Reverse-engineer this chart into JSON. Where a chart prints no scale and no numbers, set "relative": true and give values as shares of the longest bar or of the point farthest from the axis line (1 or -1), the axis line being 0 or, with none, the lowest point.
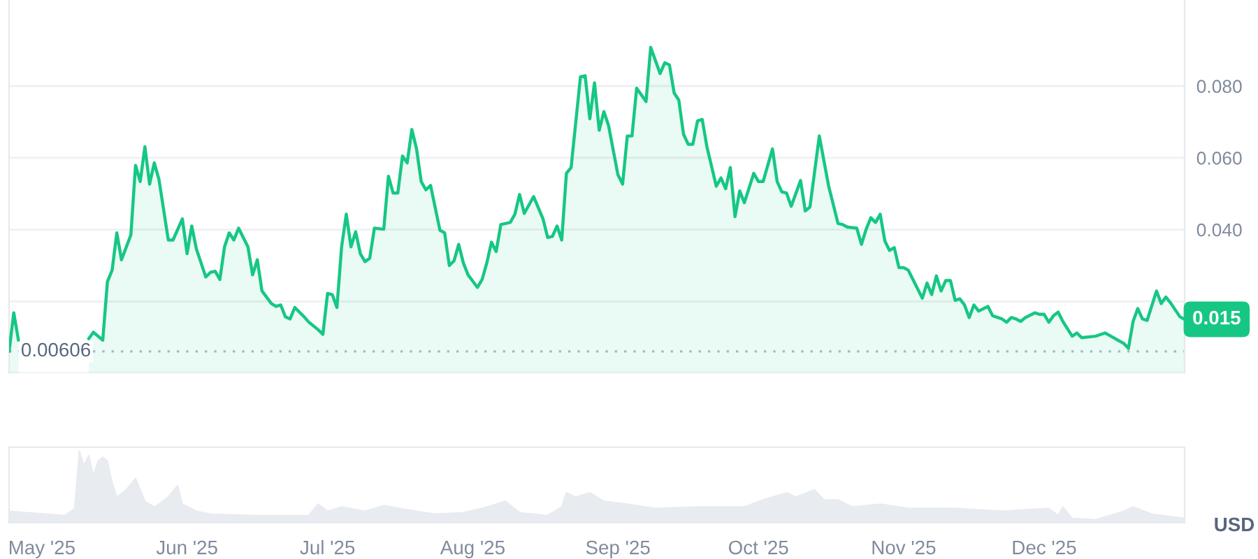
{
  "chart_data": [
    {
      "type": "area",
      "xlim": [
        "2025-04-24",
        "2025-12-31"
      ],
      "ylim": [
        0,
        0.104
      ],
      "yticks": [
        {
          "value": 0,
          "label": null
        },
        {
          "value": 0.02,
          "label": null
        },
        {
          "value": 0.04,
          "label": "0.040"
        },
        {
          "value": 0.06,
          "label": "0.060"
        },
        {
          "value": 0.08,
          "label": "0.080"
        }
      ],
      "grid": "y",
      "tick_labels": "y",
      "ref_lines": [
        {
          "axis": "y",
          "value": 0.00606,
          "label": "0.00606",
          "line_style": "dotted",
          "color": "#b4b9c3"
        }
      ],
      "annotations": [
        {
          "text": "0.015",
          "x": "2025-12-31",
          "y": 0.015
        }
      ],
      "x": [
        "2025-04-24",
        "2025-04-25",
        "2025-04-26",
        "2025-05-03",
        "2025-05-11",
        "2025-05-12",
        "2025-05-14",
        "2025-05-15",
        "2025-05-16",
        "2025-05-17",
        "2025-05-18",
        "2025-05-20",
        "2025-05-21",
        "2025-05-22",
        "2025-05-23",
        "2025-05-24",
        "2025-05-25",
        "2025-05-26",
        "2025-05-28",
        "2025-05-29",
        "2025-05-31",
        "2025-06-01",
        "2025-06-02",
        "2025-06-03",
        "2025-06-05",
        "2025-06-06",
        "2025-06-07",
        "2025-06-08",
        "2025-06-09",
        "2025-06-10",
        "2025-06-11",
        "2025-06-12",
        "2025-06-14",
        "2025-06-15",
        "2025-06-16",
        "2025-06-17",
        "2025-06-19",
        "2025-06-20",
        "2025-06-21",
        "2025-06-22",
        "2025-06-23",
        "2025-06-24",
        "2025-06-26",
        "2025-06-27",
        "2025-06-29",
        "2025-06-30",
        "2025-07-01",
        "2025-07-02",
        "2025-07-03",
        "2025-07-04",
        "2025-07-05",
        "2025-07-06",
        "2025-07-07",
        "2025-07-08",
        "2025-07-09",
        "2025-07-10",
        "2025-07-11",
        "2025-07-13",
        "2025-07-14",
        "2025-07-15",
        "2025-07-16",
        "2025-07-17",
        "2025-07-18",
        "2025-07-19",
        "2025-07-20",
        "2025-07-21",
        "2025-07-22",
        "2025-07-23",
        "2025-07-25",
        "2025-07-26",
        "2025-07-27",
        "2025-07-28",
        "2025-07-29",
        "2025-07-30",
        "2025-07-31",
        "2025-08-02",
        "2025-08-03",
        "2025-08-04",
        "2025-08-05",
        "2025-08-06",
        "2025-08-07",
        "2025-08-09",
        "2025-08-10",
        "2025-08-11",
        "2025-08-12",
        "2025-08-14",
        "2025-08-16",
        "2025-08-17",
        "2025-08-18",
        "2025-08-19",
        "2025-08-20",
        "2025-08-21",
        "2025-08-22",
        "2025-08-24",
        "2025-08-25",
        "2025-08-26",
        "2025-08-27",
        "2025-08-28",
        "2025-08-29",
        "2025-08-30",
        "2025-09-01",
        "2025-09-02",
        "2025-09-03",
        "2025-09-04",
        "2025-09-05",
        "2025-09-07",
        "2025-09-08",
        "2025-09-10",
        "2025-09-11",
        "2025-09-12",
        "2025-09-13",
        "2025-09-14",
        "2025-09-15",
        "2025-09-16",
        "2025-09-17",
        "2025-09-18",
        "2025-09-19",
        "2025-09-20",
        "2025-09-22",
        "2025-09-23",
        "2025-09-24",
        "2025-09-25",
        "2025-09-26",
        "2025-09-27",
        "2025-09-28",
        "2025-09-30",
        "2025-10-01",
        "2025-10-02",
        "2025-10-04",
        "2025-10-05",
        "2025-10-06",
        "2025-10-07",
        "2025-10-08",
        "2025-10-10",
        "2025-10-11",
        "2025-10-12",
        "2025-10-14",
        "2025-10-16",
        "2025-10-18",
        "2025-10-19",
        "2025-10-20",
        "2025-10-22",
        "2025-10-23",
        "2025-10-24",
        "2025-10-25",
        "2025-10-26",
        "2025-10-27",
        "2025-10-28",
        "2025-10-29",
        "2025-10-30",
        "2025-10-31",
        "2025-11-01",
        "2025-11-02",
        "2025-11-05",
        "2025-11-06",
        "2025-11-07",
        "2025-11-08",
        "2025-11-09",
        "2025-11-10",
        "2025-11-11",
        "2025-11-12",
        "2025-11-13",
        "2025-11-14",
        "2025-11-15",
        "2025-11-16",
        "2025-11-17",
        "2025-11-19",
        "2025-11-20",
        "2025-11-22",
        "2025-11-23",
        "2025-11-24",
        "2025-11-25",
        "2025-11-26",
        "2025-11-27",
        "2025-11-29",
        "2025-11-30",
        "2025-12-01",
        "2025-12-02",
        "2025-12-03",
        "2025-12-04",
        "2025-12-05",
        "2025-12-07",
        "2025-12-08",
        "2025-12-09",
        "2025-12-12",
        "2025-12-14",
        "2025-12-15",
        "2025-12-17",
        "2025-12-18",
        "2025-12-19",
        "2025-12-20",
        "2025-12-21",
        "2025-12-22",
        "2025-12-23",
        "2025-12-25",
        "2025-12-26",
        "2025-12-27",
        "2025-12-28",
        "2025-12-30",
        "2025-12-31"
      ],
      "series": [
        {
          "color": "#16c784",
          "values": [
            0.00606,
            0.0168,
            0.0092,
            null,
            0.0096,
            0.0114,
            0.0092,
            0.0255,
            0.0287,
            0.0391,
            0.0316,
            0.0385,
            0.0579,
            0.0534,
            0.0631,
            0.0527,
            0.0586,
            0.054,
            0.0371,
            0.0371,
            0.043,
            0.0333,
            0.041,
            0.0346,
            0.0268,
            0.0281,
            0.0284,
            0.0261,
            0.0352,
            0.0391,
            0.0371,
            0.0404,
            0.0352,
            0.0274,
            0.0316,
            0.0229,
            0.0194,
            0.0186,
            0.019,
            0.0157,
            0.0151,
            0.0183,
            0.0157,
            0.0142,
            0.0121,
            0.0108,
            0.0222,
            0.0219,
            0.0183,
            0.0352,
            0.0443,
            0.0352,
            0.0394,
            0.0333,
            0.0311,
            0.032,
            0.0404,
            0.0401,
            0.0549,
            0.0502,
            0.0502,
            0.0605,
            0.0586,
            0.0679,
            0.0625,
            0.0534,
            0.0511,
            0.0523,
            0.0398,
            0.0391,
            0.03,
            0.0313,
            0.0359,
            0.0307,
            0.0274,
            0.0239,
            0.0261,
            0.0307,
            0.0365,
            0.0339,
            0.0414,
            0.042,
            0.0443,
            0.0498,
            0.0445,
            0.0492,
            0.043,
            0.0378,
            0.0381,
            0.041,
            0.0371,
            0.0557,
            0.0573,
            0.0826,
            0.0829,
            0.0709,
            0.0809,
            0.0677,
            0.0729,
            0.069,
            0.0553,
            0.0527,
            0.0661,
            0.0661,
            0.0794,
            0.0757,
            0.0908,
            0.0835,
            0.0865,
            0.0859,
            0.0781,
            0.0761,
            0.0666,
            0.0638,
            0.0638,
            0.0703,
            0.0707,
            0.0631,
            0.0521,
            0.0544,
            0.0514,
            0.0573,
            0.0436,
            0.0508,
            0.0475,
            0.0557,
            0.0534,
            0.0534,
            0.0625,
            0.0534,
            0.0505,
            0.0502,
            0.0465,
            0.0537,
            0.0452,
            0.0463,
            0.0661,
            0.0521,
            0.0417,
            0.0414,
            0.0407,
            0.0404,
            0.0359,
            0.0401,
            0.0433,
            0.042,
            0.0443,
            0.0368,
            0.0342,
            0.035,
            0.0294,
            0.0294,
            0.0287,
            0.0209,
            0.0251,
            0.0219,
            0.0271,
            0.0229,
            0.0258,
            0.0258,
            0.0203,
            0.0207,
            0.019,
            0.0155,
            0.019,
            0.0173,
            0.0186,
            0.016,
            0.0151,
            0.0142,
            0.0155,
            0.0151,
            0.0144,
            0.0155,
            0.0168,
            0.0164,
            0.0164,
            0.0142,
            0.016,
            0.017,
            0.0144,
            0.0103,
            0.0112,
            0.0099,
            0.0103,
            0.0112,
            0.0105,
            0.009,
            0.0083,
            0.0069,
            0.0144,
            0.018,
            0.0151,
            0.0147,
            0.0229,
            0.0194,
            0.0212,
            0.0196,
            0.0157,
            0.015
          ]
        }
      ]
    },
    {
      "type": "area",
      "relative": true,
      "ylabel": "USD",
      "xlim": [
        "2025-04-24",
        "2025-12-31"
      ],
      "tick_labels": "x",
      "xticks": [
        {
          "value": "2025-05-01",
          "label": "May '25"
        },
        {
          "value": "2025-06-01",
          "label": "Jun '25"
        },
        {
          "value": "2025-07-01",
          "label": "Jul '25"
        },
        {
          "value": "2025-08-01",
          "label": "Aug '25"
        },
        {
          "value": "2025-09-01",
          "label": "Sep '25"
        },
        {
          "value": "2025-10-01",
          "label": "Oct '25"
        },
        {
          "value": "2025-11-01",
          "label": "Nov '25"
        },
        {
          "value": "2025-12-01",
          "label": "Dec '25"
        }
      ],
      "x": [
        "2025-04-24",
        "2025-04-28",
        "2025-05-02",
        "2025-05-06",
        "2025-05-08",
        "2025-05-09",
        "2025-05-10",
        "2025-05-11",
        "2025-05-12",
        "2025-05-13",
        "2025-05-14",
        "2025-05-15",
        "2025-05-16",
        "2025-05-17",
        "2025-05-19",
        "2025-05-21",
        "2025-05-22",
        "2025-05-23",
        "2025-05-25",
        "2025-05-26",
        "2025-05-28",
        "2025-05-30",
        "2025-05-31",
        "2025-06-03",
        "2025-06-06",
        "2025-06-15",
        "2025-06-27",
        "2025-06-29",
        "2025-07-01",
        "2025-07-04",
        "2025-07-09",
        "2025-07-13",
        "2025-07-18",
        "2025-07-24",
        "2025-07-30",
        "2025-08-03",
        "2025-08-06",
        "2025-08-08",
        "2025-08-11",
        "2025-08-17",
        "2025-08-20",
        "2025-08-21",
        "2025-08-23",
        "2025-08-26",
        "2025-08-29",
        "2025-09-03",
        "2025-09-09",
        "2025-09-18",
        "2025-09-28",
        "2025-10-02",
        "2025-10-07",
        "2025-10-09",
        "2025-10-13",
        "2025-10-15",
        "2025-10-18",
        "2025-10-21",
        "2025-10-27",
        "2025-11-02",
        "2025-11-12",
        "2025-11-22",
        "2025-12-02",
        "2025-12-04",
        "2025-12-05",
        "2025-12-07",
        "2025-12-12",
        "2025-12-18",
        "2025-12-20",
        "2025-12-24",
        "2025-12-31"
      ],
      "series": [
        {
          "color": "#e8ebf0",
          "values": [
            0.16,
            0.14,
            0.12,
            0.1,
            0.2,
            1.0,
            0.8,
            0.94,
            0.66,
            0.86,
            0.92,
            0.86,
            0.56,
            0.36,
            0.46,
            0.62,
            0.46,
            0.3,
            0.22,
            0.26,
            0.36,
            0.52,
            0.26,
            0.16,
            0.12,
            0.1,
            0.1,
            0.26,
            0.16,
            0.22,
            0.16,
            0.24,
            0.18,
            0.12,
            0.14,
            0.2,
            0.26,
            0.3,
            0.14,
            0.1,
            0.22,
            0.42,
            0.36,
            0.42,
            0.3,
            0.26,
            0.2,
            0.22,
            0.22,
            0.32,
            0.42,
            0.36,
            0.46,
            0.32,
            0.32,
            0.22,
            0.26,
            0.2,
            0.2,
            0.16,
            0.2,
            0.1,
            0.22,
            0.06,
            0.04,
            0.16,
            0.22,
            0.12,
            0.06
          ]
        }
      ]
    }
  ]
}
